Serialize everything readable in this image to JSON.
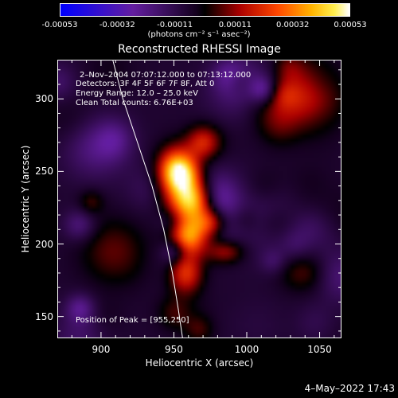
{
  "chart_data": {
    "type": "heatmap",
    "title": "Reconstructed RHESSI Image",
    "xlabel": "Heliocentric X (arcsec)",
    "ylabel": "Heliocentric Y (arcsec)",
    "xlim": [
      870,
      1065
    ],
    "ylim": [
      135,
      327
    ],
    "x_ticks": [
      "900",
      "950",
      "1000",
      "1050"
    ],
    "x_tick_values": [
      900,
      950,
      1000,
      1050
    ],
    "y_ticks": [
      "150",
      "200",
      "250",
      "300"
    ],
    "y_tick_values": [
      150,
      200,
      250,
      300
    ],
    "colorbar": {
      "ticks": [
        "-0.00053",
        "-0.00032",
        "-0.00011",
        "0.00011",
        "0.00032",
        "0.00053"
      ],
      "tick_values": [
        -0.00053,
        -0.00032,
        -0.00011,
        0.00011,
        0.00032,
        0.00053
      ],
      "label": "(photons cm⁻² s⁻¹ asec⁻²)",
      "range": [
        -0.00053,
        0.00053
      ]
    },
    "annotations": {
      "time": "2–Nov–2004 07:07:12.000 to 07:13:12.000",
      "detectors": "Detectors: 3F 4F 5F 6F 7F 8F, Att 0",
      "energy": "Energy Range: 12.0 – 25.0 keV",
      "clean": "Clean     Total counts: 6.76E+03",
      "peak": "Position of Peak = [955,250]"
    },
    "peak": [
      955,
      250
    ],
    "limb": [
      [
        908,
        327
      ],
      [
        915,
        300
      ],
      [
        925,
        270
      ],
      [
        935,
        240
      ],
      [
        943,
        210
      ],
      [
        949,
        180
      ],
      [
        953,
        155
      ],
      [
        956,
        135
      ]
    ],
    "sources": [
      {
        "x": 952,
        "y": 250,
        "sx": 9,
        "sy": 11,
        "amp": 1.0
      },
      {
        "x": 963,
        "y": 230,
        "sx": 10,
        "sy": 10,
        "amp": 0.9
      },
      {
        "x": 960,
        "y": 205,
        "sx": 9,
        "sy": 9,
        "amp": 0.75
      },
      {
        "x": 958,
        "y": 180,
        "sx": 8,
        "sy": 10,
        "amp": 0.55
      },
      {
        "x": 975,
        "y": 215,
        "sx": 8,
        "sy": 7,
        "amp": 0.5
      },
      {
        "x": 970,
        "y": 270,
        "sx": 8,
        "sy": 8,
        "amp": 0.45
      },
      {
        "x": 985,
        "y": 195,
        "sx": 9,
        "sy": 6,
        "amp": 0.4
      }
    ],
    "grid": false,
    "colormap": "rhessi"
  },
  "footer": {
    "timestamp": "4–May–2022 17:43"
  }
}
